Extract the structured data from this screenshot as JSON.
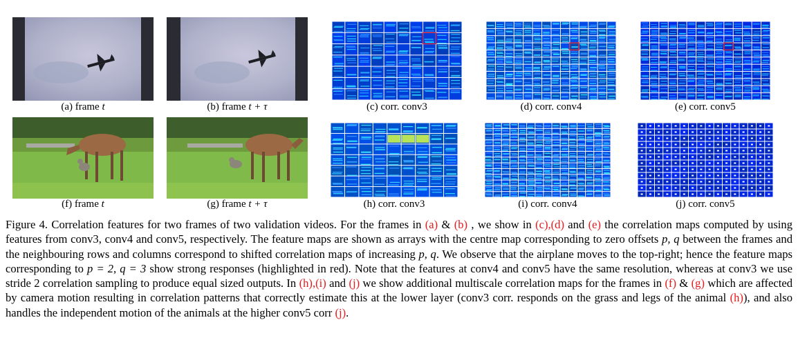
{
  "panels": [
    {
      "id": "a",
      "caption": "(a) frame",
      "var": "t",
      "kind": "sky"
    },
    {
      "id": "b",
      "caption": "(b) frame",
      "var": "t + τ",
      "kind": "sky"
    },
    {
      "id": "c",
      "caption": "(c) corr. conv3",
      "kind": "corr"
    },
    {
      "id": "d",
      "caption": "(d) corr. conv4",
      "kind": "corr"
    },
    {
      "id": "e",
      "caption": "(e) corr. conv5",
      "kind": "corr"
    },
    {
      "id": "f",
      "caption": "(f) frame",
      "var": "t",
      "kind": "grass"
    },
    {
      "id": "g",
      "caption": "(g) frame",
      "var": "t + τ",
      "kind": "grass"
    },
    {
      "id": "h",
      "caption": "(h) corr. conv3",
      "kind": "corr"
    },
    {
      "id": "i",
      "caption": "(i) corr. conv4",
      "kind": "corr"
    },
    {
      "id": "j",
      "caption": "(j) corr. conv5",
      "kind": "corr"
    }
  ],
  "caption": {
    "label": "Figure 4.",
    "t1": " Correlation features for two frames of two validation videos. For the frames in ",
    "r_a": "(a)",
    "t2": " & ",
    "r_b": "(b)",
    "t3": " , we show in ",
    "r_ce": "(c),(d)",
    "t4": " and ",
    "r_e": "(e)",
    "t5": " the correlation maps computed by using features from conv3, conv4 and conv5, respectively. The feature maps are shown as arrays with the centre map corresponding to zero offsets ",
    "m1": "p, q",
    "t6": " between the frames and the neighbouring rows and columns correspond to shifted correlation maps of increasing ",
    "m2": "p, q",
    "t7": ". We observe that the airplane moves to the top-right; hence the feature maps corresponding to ",
    "m3": "p = 2, q = 3",
    "t8": " show strong responses (highlighted in red). Note that the features at conv4 and conv5 have the same resolution, whereas at conv3 we use stride 2 correlation sampling to produce equal sized outputs. In ",
    "r_hi": "(h),(i)",
    "t9": " and ",
    "r_j": "(j)",
    "t10": " we show additional multiscale correlation maps for the frames in ",
    "r_f": "(f)",
    "t11": " & ",
    "r_g": "(g)",
    "t12": " which are affected by camera motion resulting in correlation patterns that correctly estimate this at the lower layer (conv3 corr. responds on the grass and legs of the animal ",
    "r_h": "(h)",
    "t13": "), and also handles the independent motion of the animals at the higher conv5 corr ",
    "r_j2": "(j)",
    "t14": "."
  }
}
